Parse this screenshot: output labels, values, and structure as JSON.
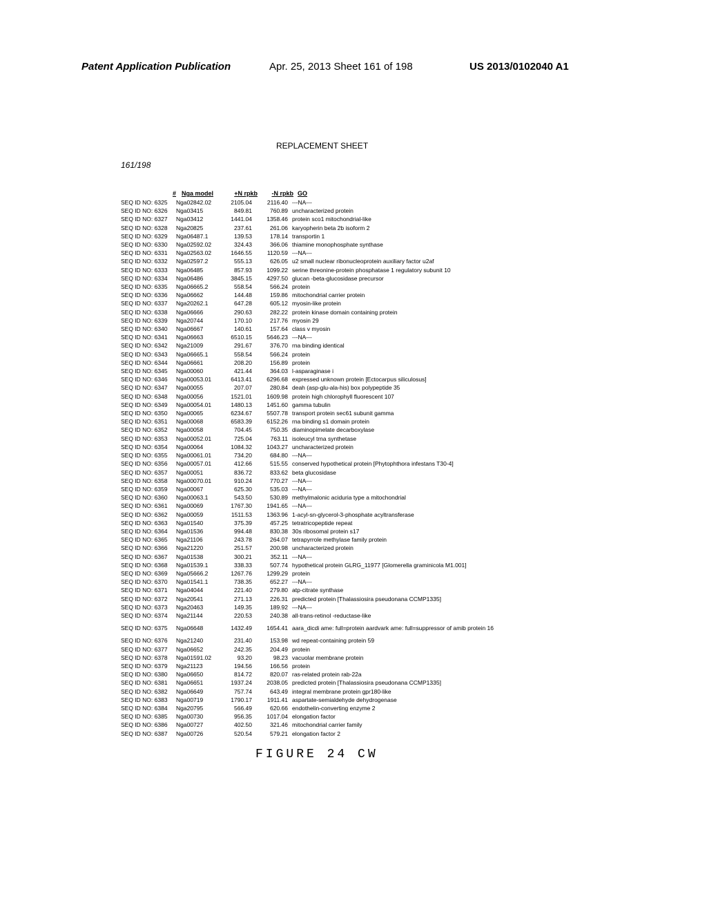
{
  "header": {
    "left": "Patent Application Publication",
    "center": "Apr. 25, 2013  Sheet 161 of 198",
    "right": "US 2013/0102040 A1"
  },
  "replacement": "REPLACEMENT SHEET",
  "sheet_num": "161/198",
  "figure_label": "FIGURE 24 CW",
  "table": {
    "headers": {
      "hash": "#",
      "model": "Nga model",
      "plus": "+N rpkb",
      "minus": "-N rpkb",
      "go": "GO"
    },
    "rows": [
      {
        "id": "SEQ ID NO: 6325",
        "model": "Nga02842.02",
        "plus": "2105.04",
        "minus": "2116.40",
        "go": "---NA---"
      },
      {
        "id": "SEQ ID NO: 6326",
        "model": "Nga03415",
        "plus": "849.81",
        "minus": "760.89",
        "go": "uncharacterized protein"
      },
      {
        "id": "SEQ ID NO: 6327",
        "model": "Nga03412",
        "plus": "1441.04",
        "minus": "1358.46",
        "go": "protein sco1 mitochondrial-like"
      },
      {
        "id": "SEQ ID NO: 6328",
        "model": "Nga20825",
        "plus": "237.61",
        "minus": "261.06",
        "go": "karyopherin beta 2b isoform 2"
      },
      {
        "id": "SEQ ID NO: 6329",
        "model": "Nga06487.1",
        "plus": "139.53",
        "minus": "178.14",
        "go": "transportin 1"
      },
      {
        "id": "SEQ ID NO: 6330",
        "model": "Nga02592.02",
        "plus": "324.43",
        "minus": "366.06",
        "go": "thiamine monophosphate synthase"
      },
      {
        "id": "SEQ ID NO: 6331",
        "model": "Nga02563.02",
        "plus": "1646.55",
        "minus": "1120.59",
        "go": "---NA---"
      },
      {
        "id": "SEQ ID NO: 6332",
        "model": "Nga02597.2",
        "plus": "555.13",
        "minus": "626.05",
        "go": "u2 small nuclear ribonucleoprotein auxiliary factor u2af"
      },
      {
        "id": "SEQ ID NO: 6333",
        "model": "Nga06485",
        "plus": "857.93",
        "minus": "1099.22",
        "go": "serine threonine-protein phosphatase 1 regulatory subunit 10"
      },
      {
        "id": "SEQ ID NO: 6334",
        "model": "Nga06486",
        "plus": "3845.15",
        "minus": "4297.50",
        "go": "glucan -beta-glucosidase precursor"
      },
      {
        "id": "SEQ ID NO: 6335",
        "model": "Nga06665.2",
        "plus": "558.54",
        "minus": "566.24",
        "go": "protein"
      },
      {
        "id": "SEQ ID NO: 6336",
        "model": "Nga06662",
        "plus": "144.48",
        "minus": "159.86",
        "go": "mitochondrial carrier protein"
      },
      {
        "id": "SEQ ID NO: 6337",
        "model": "Nga20262.1",
        "plus": "647.28",
        "minus": "605.12",
        "go": "myosin-like protein"
      },
      {
        "id": "SEQ ID NO: 6338",
        "model": "Nga06666",
        "plus": "290.63",
        "minus": "282.22",
        "go": "protein kinase domain containing protein"
      },
      {
        "id": "SEQ ID NO: 6339",
        "model": "Nga20744",
        "plus": "170.10",
        "minus": "217.76",
        "go": "myosin 29"
      },
      {
        "id": "SEQ ID NO: 6340",
        "model": "Nga06667",
        "plus": "140.61",
        "minus": "157.64",
        "go": "class v myosin"
      },
      {
        "id": "SEQ ID NO: 6341",
        "model": "Nga06663",
        "plus": "6510.15",
        "minus": "5646.23",
        "go": "---NA---"
      },
      {
        "id": "SEQ ID NO: 6342",
        "model": "Nga21009",
        "plus": "291.67",
        "minus": "376.70",
        "go": "rna binding identical"
      },
      {
        "id": "SEQ ID NO: 6343",
        "model": "Nga06665.1",
        "plus": "558.54",
        "minus": "566.24",
        "go": "protein"
      },
      {
        "id": "SEQ ID NO: 6344",
        "model": "Nga06661",
        "plus": "208.20",
        "minus": "156.89",
        "go": "protein"
      },
      {
        "id": "SEQ ID NO: 6345",
        "model": "Nga00060",
        "plus": "421.44",
        "minus": "364.03",
        "go": "l-asparaginase i"
      },
      {
        "id": "SEQ ID NO: 6346",
        "model": "Nga00053.01",
        "plus": "6413.41",
        "minus": "6296.68",
        "go": "expressed unknown protein [Ectocarpus siliculosus]"
      },
      {
        "id": "SEQ ID NO: 6347",
        "model": "Nga00055",
        "plus": "207.07",
        "minus": "280.84",
        "go": "deah (asp-glu-ala-his) box polypeptide 35"
      },
      {
        "id": "SEQ ID NO: 6348",
        "model": "Nga00056",
        "plus": "1521.01",
        "minus": "1609.98",
        "go": "protein high chlorophyll fluorescent 107"
      },
      {
        "id": "SEQ ID NO: 6349",
        "model": "Nga00054.01",
        "plus": "1480.13",
        "minus": "1451.60",
        "go": "gamma tubulin"
      },
      {
        "id": "SEQ ID NO: 6350",
        "model": "Nga00065",
        "plus": "6234.67",
        "minus": "5507.78",
        "go": "transport protein sec61 subunit gamma"
      },
      {
        "id": "SEQ ID NO: 6351",
        "model": "Nga00068",
        "plus": "6583.39",
        "minus": "6152.26",
        "go": "rna binding s1 domain protein"
      },
      {
        "id": "SEQ ID NO: 6352",
        "model": "Nga00058",
        "plus": "704.45",
        "minus": "750.35",
        "go": "diaminopimelate decarboxylase"
      },
      {
        "id": "SEQ ID NO: 6353",
        "model": "Nga00052.01",
        "plus": "725.04",
        "minus": "763.11",
        "go": "isoleucyl trna synthetase"
      },
      {
        "id": "SEQ ID NO: 6354",
        "model": "Nga00064",
        "plus": "1084.32",
        "minus": "1043.27",
        "go": "uncharacterized protein"
      },
      {
        "id": "SEQ ID NO: 6355",
        "model": "Nga00061.01",
        "plus": "734.20",
        "minus": "684.80",
        "go": "---NA---"
      },
      {
        "id": "SEQ ID NO: 6356",
        "model": "Nga00057.01",
        "plus": "412.66",
        "minus": "515.55",
        "go": "conserved hypothetical protein [Phytophthora infestans T30-4]"
      },
      {
        "id": "SEQ ID NO: 6357",
        "model": "Nga00051",
        "plus": "836.72",
        "minus": "833.62",
        "go": "beta glucosidase"
      },
      {
        "id": "SEQ ID NO: 6358",
        "model": "Nga00070.01",
        "plus": "910.24",
        "minus": "770.27",
        "go": "---NA---"
      },
      {
        "id": "SEQ ID NO: 6359",
        "model": "Nga00067",
        "plus": "625.30",
        "minus": "535.03",
        "go": "---NA---"
      },
      {
        "id": "SEQ ID NO: 6360",
        "model": "Nga00063.1",
        "plus": "543.50",
        "minus": "530.89",
        "go": "methylmalonic aciduria type a mitochondrial"
      },
      {
        "id": "SEQ ID NO: 6361",
        "model": "Nga00069",
        "plus": "1767.30",
        "minus": "1941.65",
        "go": "---NA---"
      },
      {
        "id": "SEQ ID NO: 6362",
        "model": "Nga00059",
        "plus": "1511.53",
        "minus": "1363.96",
        "go": "1-acyl-sn-glycerol-3-phosphate acyltransferase"
      },
      {
        "id": "SEQ ID NO: 6363",
        "model": "Nga01540",
        "plus": "375.39",
        "minus": "457.25",
        "go": "tetratricopeptide repeat"
      },
      {
        "id": "SEQ ID NO: 6364",
        "model": "Nga01536",
        "plus": "994.48",
        "minus": "830.38",
        "go": "30s ribosomal protein s17"
      },
      {
        "id": "SEQ ID NO: 6365",
        "model": "Nga21106",
        "plus": "243.78",
        "minus": "264.07",
        "go": "tetrapyrrole methylase family protein"
      },
      {
        "id": "SEQ ID NO: 6366",
        "model": "Nga21220",
        "plus": "251.57",
        "minus": "200.98",
        "go": "uncharacterized protein"
      },
      {
        "id": "SEQ ID NO: 6367",
        "model": "Nga01538",
        "plus": "300.21",
        "minus": "352.11",
        "go": "---NA---"
      },
      {
        "id": "SEQ ID NO: 6368",
        "model": "Nga01539.1",
        "plus": "338.33",
        "minus": "507.74",
        "go": "hypothetical protein GLRG_11977 [Glomerella graminicola M1.001]"
      },
      {
        "id": "SEQ ID NO: 6369",
        "model": "Nga05666.2",
        "plus": "1267.76",
        "minus": "1299.29",
        "go": "protein"
      },
      {
        "id": "SEQ ID NO: 6370",
        "model": "Nga01541.1",
        "plus": "738.35",
        "minus": "652.27",
        "go": "---NA---"
      },
      {
        "id": "SEQ ID NO: 6371",
        "model": "Nga04044",
        "plus": "221.40",
        "minus": "279.80",
        "go": "atp-citrate synthase"
      },
      {
        "id": "SEQ ID NO: 6372",
        "model": "Nga20541",
        "plus": "271.13",
        "minus": "226.31",
        "go": "predicted protein [Thalassiosira pseudonana CCMP1335]"
      },
      {
        "id": "SEQ ID NO: 6373",
        "model": "Nga20463",
        "plus": "149.35",
        "minus": "189.92",
        "go": "---NA---"
      },
      {
        "id": "SEQ ID NO: 6374",
        "model": "Nga21144",
        "plus": "220.53",
        "minus": "240.38",
        "go": "all-trans-retinol -reductase-like"
      },
      {
        "id": "SEQ ID NO: 6375",
        "model": "Nga06648",
        "plus": "1432.49",
        "minus": "1654.41",
        "go": "aara_dicdi ame: full=protein aardvark ame: full=suppressor of amib protein 16"
      },
      {
        "id": "SEQ ID NO: 6376",
        "model": "Nga21240",
        "plus": "231.40",
        "minus": "153.98",
        "go": "wd repeat-containing protein 59"
      },
      {
        "id": "SEQ ID NO: 6377",
        "model": "Nga06652",
        "plus": "242.35",
        "minus": "204.49",
        "go": "protein"
      },
      {
        "id": "SEQ ID NO: 6378",
        "model": "Nga01591.02",
        "plus": "93.20",
        "minus": "98.23",
        "go": "vacuolar membrane protein"
      },
      {
        "id": "SEQ ID NO: 6379",
        "model": "Nga21123",
        "plus": "194.56",
        "minus": "166.56",
        "go": "protein"
      },
      {
        "id": "SEQ ID NO: 6380",
        "model": "Nga06650",
        "plus": "814.72",
        "minus": "820.07",
        "go": "ras-related protein rab-22a"
      },
      {
        "id": "SEQ ID NO: 6381",
        "model": "Nga06651",
        "plus": "1937.24",
        "minus": "2038.05",
        "go": "predicted protein [Thalassiosira pseudonana CCMP1335]"
      },
      {
        "id": "SEQ ID NO: 6382",
        "model": "Nga06649",
        "plus": "757.74",
        "minus": "643.49",
        "go": "integral membrane protein gpr180-like"
      },
      {
        "id": "SEQ ID NO: 6383",
        "model": "Nga00719",
        "plus": "1790.17",
        "minus": "1911.41",
        "go": "aspartate-semialdehyde dehydrogenase"
      },
      {
        "id": "SEQ ID NO: 6384",
        "model": "Nga20795",
        "plus": "566.49",
        "minus": "620.66",
        "go": "endothelin-converting enzyme 2"
      },
      {
        "id": "SEQ ID NO: 6385",
        "model": "Nga00730",
        "plus": "956.35",
        "minus": "1017.04",
        "go": "elongation factor"
      },
      {
        "id": "SEQ ID NO: 6386",
        "model": "Nga00727",
        "plus": "402.50",
        "minus": "321.46",
        "go": "mitochondrial carrier family"
      },
      {
        "id": "SEQ ID NO: 6387",
        "model": "Nga00726",
        "plus": "520.54",
        "minus": "579.21",
        "go": "elongation factor 2"
      }
    ]
  }
}
